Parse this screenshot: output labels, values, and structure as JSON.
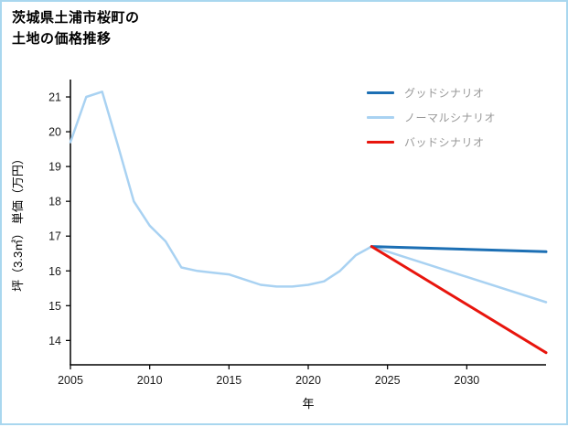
{
  "page": {
    "title_lines": [
      "茨城県土浦市桜町の",
      "土地の価格推移"
    ],
    "border_color": "#a9d7ef",
    "background_color": "#ffffff"
  },
  "chart_data": {
    "type": "line",
    "title": "茨城県土浦市桜町の土地の価格推移",
    "xlabel": "年",
    "ylabel": "坪（3.3㎡） 単価（万円）",
    "x_range": [
      2005,
      2035
    ],
    "y_range": [
      13.3,
      21.5
    ],
    "xticks": [
      2005,
      2010,
      2015,
      2020,
      2025,
      2030
    ],
    "yticks": [
      14,
      15,
      16,
      17,
      18,
      19,
      20,
      21
    ],
    "grid": false,
    "legend_position": "top-right",
    "axis_color": "#000000",
    "tick_label_color": "#1a1a1a",
    "legend_text_color": "#999999",
    "series": [
      {
        "id": "good-scenario",
        "name": "グッドシナリオ",
        "color": "#1c6fb4",
        "width": 3,
        "x": [
          2024,
          2035
        ],
        "y": [
          16.7,
          16.55
        ]
      },
      {
        "id": "normal-scenario",
        "name": "ノーマルシナリオ",
        "color": "#a9d2f2",
        "width": 2.5,
        "x": [
          2005,
          2006,
          2007,
          2008,
          2009,
          2010,
          2011,
          2012,
          2013,
          2014,
          2015,
          2016,
          2017,
          2018,
          2019,
          2020,
          2021,
          2022,
          2023,
          2024,
          2035
        ],
        "y": [
          19.7,
          21.0,
          21.15,
          19.6,
          18.0,
          17.3,
          16.85,
          16.1,
          16.0,
          15.95,
          15.9,
          15.75,
          15.6,
          15.55,
          15.55,
          15.6,
          15.7,
          16.0,
          16.45,
          16.7,
          15.1
        ]
      },
      {
        "id": "bad-scenario",
        "name": "バッドシナリオ",
        "color": "#e8150d",
        "width": 3,
        "x": [
          2024,
          2035
        ],
        "y": [
          16.7,
          13.65
        ]
      }
    ]
  }
}
